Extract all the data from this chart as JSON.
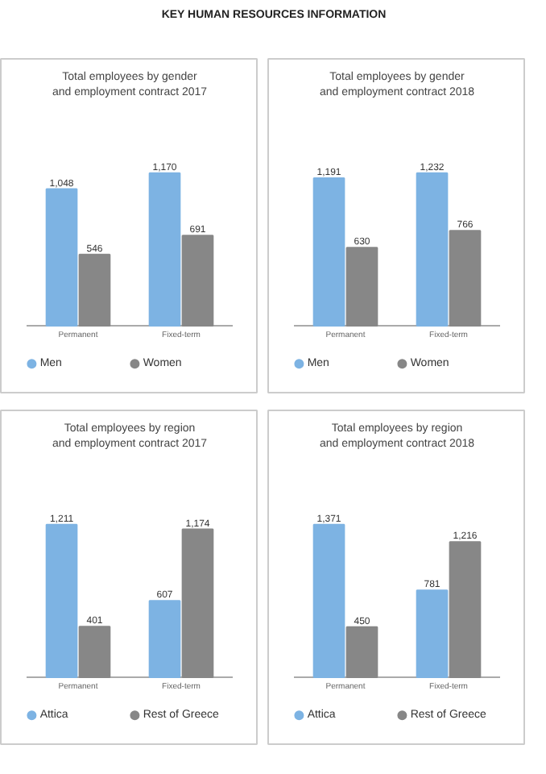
{
  "chart_data": [
    {
      "type": "bar",
      "title": "Total employees by gender\nand employment contract 2017",
      "annotations": [
        "KEY HUMAN RESOURCES INFORMATION"
      ],
      "categories": [
        "Permanent",
        "Fixed-term"
      ],
      "legend": "bottom",
      "series": [
        {
          "name": "Men",
          "color": "#7db3e3",
          "values": [
            1048,
            1170
          ],
          "value_labels": [
            "1,048",
            "1,170"
          ]
        },
        {
          "name": "Women",
          "color": "#878787",
          "values": [
            546,
            691
          ],
          "value_labels": [
            "546",
            "691"
          ]
        }
      ]
    },
    {
      "type": "bar",
      "title": "Total employees by gender\nand employment contract 2018",
      "categories": [
        "Permanent",
        "Fixed-term"
      ],
      "legend": "bottom",
      "series": [
        {
          "name": "Men",
          "color": "#7db3e3",
          "values": [
            1191,
            1232
          ],
          "value_labels": [
            "1,191",
            "1,232"
          ]
        },
        {
          "name": "Women",
          "color": "#878787",
          "values": [
            630,
            766
          ],
          "value_labels": [
            "630",
            "766"
          ]
        }
      ]
    },
    {
      "type": "bar",
      "title": "Total employees by region\nand employment contract 2017",
      "categories": [
        "Permanent",
        "Fixed-term"
      ],
      "legend": "bottom",
      "series": [
        {
          "name": "Attica",
          "color": "#7db3e3",
          "values": [
            1211,
            607
          ],
          "value_labels": [
            "1,211",
            "607"
          ]
        },
        {
          "name": "Rest of Greece",
          "color": "#878787",
          "values": [
            401,
            1174
          ],
          "value_labels": [
            "401",
            "1,174"
          ]
        }
      ]
    },
    {
      "type": "bar",
      "title": "Total employees by region\nand employment contract 2018",
      "categories": [
        "Permanent",
        "Fixed-term"
      ],
      "legend": "bottom",
      "series": [
        {
          "name": "Attica",
          "color": "#7db3e3",
          "values": [
            1371,
            781
          ],
          "value_labels": [
            "1,371",
            "781"
          ]
        },
        {
          "name": "Rest of Greece",
          "color": "#878787",
          "values": [
            450,
            1216
          ],
          "value_labels": [
            "450",
            "1,216"
          ]
        }
      ]
    }
  ]
}
